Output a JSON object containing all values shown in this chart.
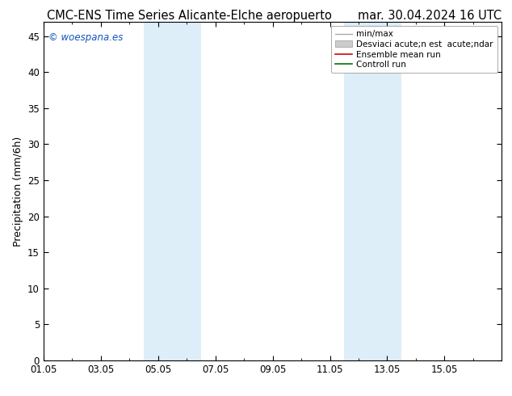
{
  "title": "CMC-ENS Time Series Alicante-Elche aeropuerto",
  "title_right": "mar. 30.04.2024 16 UTC",
  "ylabel": "Precipitation (mm/6h)",
  "ylim": [
    0,
    47
  ],
  "yticks": [
    0,
    5,
    10,
    15,
    20,
    25,
    30,
    35,
    40,
    45
  ],
  "xtick_labels": [
    "01.05",
    "03.05",
    "05.05",
    "07.05",
    "09.05",
    "11.05",
    "13.05",
    "15.05"
  ],
  "xtick_positions": [
    0,
    2,
    4,
    6,
    8,
    10,
    12,
    14
  ],
  "xlim": [
    0,
    16
  ],
  "shaded_regions": [
    {
      "x_start": 3.5,
      "x_end": 4.0,
      "color": "#ddeef8"
    },
    {
      "x_start": 4.0,
      "x_end": 5.5,
      "color": "#ddeef8"
    },
    {
      "x_start": 10.5,
      "x_end": 11.0,
      "color": "#ddeef8"
    },
    {
      "x_start": 11.0,
      "x_end": 12.5,
      "color": "#ddeef8"
    }
  ],
  "watermark": "woespana.es",
  "background_color": "#ffffff",
  "legend_line1_color": "#aaaaaa",
  "legend_rect_color": "#cccccc",
  "legend_line2_color": "#dd0000",
  "legend_line3_color": "#007700",
  "title_fontsize": 10.5,
  "ylabel_fontsize": 9,
  "tick_fontsize": 8.5,
  "legend_fontsize": 7.5
}
